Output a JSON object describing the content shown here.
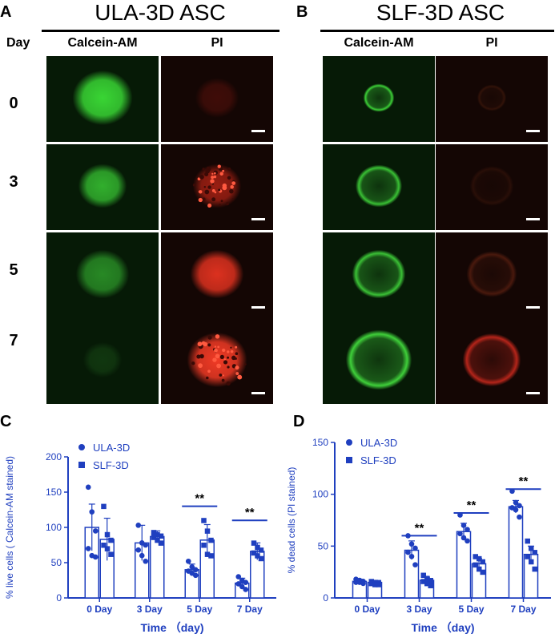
{
  "panels": {
    "A": {
      "letter": "A",
      "title": "ULA-3D ASC",
      "day_header": "Day",
      "col_calcein": "Calcein-AM",
      "col_pi": "PI",
      "days": [
        "0",
        "3",
        "5",
        "7"
      ],
      "tiles": [
        {
          "calcein": {
            "type": "blob",
            "color": "#39d534",
            "intensity": 1.0,
            "size": 0.62
          },
          "pi": {
            "type": "faint",
            "color": "#c02015",
            "intensity": 0.25,
            "size": 0.45
          }
        },
        {
          "calcein": {
            "type": "blob",
            "color": "#39c934",
            "intensity": 0.85,
            "size": 0.5
          },
          "pi": {
            "type": "speckle",
            "color": "#d02818",
            "intensity": 0.7,
            "size": 0.5
          }
        },
        {
          "calcein": {
            "type": "blob",
            "color": "#36b832",
            "intensity": 0.7,
            "size": 0.55
          },
          "pi": {
            "type": "blob",
            "color": "#e63320",
            "intensity": 0.95,
            "size": 0.55
          }
        },
        {
          "calcein": {
            "type": "faint",
            "color": "#2a7a26",
            "intensity": 0.3,
            "size": 0.4
          },
          "pi": {
            "type": "speckle",
            "color": "#f03a25",
            "intensity": 1.0,
            "size": 0.62
          }
        }
      ]
    },
    "B": {
      "letter": "B",
      "title": "SLF-3D ASC",
      "col_calcein": "Calcein-AM",
      "col_pi": "PI",
      "tiles": [
        {
          "calcein": {
            "type": "ring",
            "color": "#3ccf37",
            "intensity": 1.0,
            "size": 0.32
          },
          "pi": {
            "type": "ring-faint",
            "color": "#6a2a12",
            "intensity": 0.35,
            "size": 0.3
          }
        },
        {
          "calcein": {
            "type": "ring",
            "color": "#3cc937",
            "intensity": 0.95,
            "size": 0.48
          },
          "pi": {
            "type": "ring-faint",
            "color": "#5a2210",
            "intensity": 0.3,
            "size": 0.45
          }
        },
        {
          "calcein": {
            "type": "ring",
            "color": "#3dc938",
            "intensity": 0.95,
            "size": 0.55
          },
          "pi": {
            "type": "ring-faint",
            "color": "#8a3018",
            "intensity": 0.45,
            "size": 0.52
          }
        },
        {
          "calcein": {
            "type": "ring",
            "color": "#3fcf3a",
            "intensity": 1.0,
            "size": 0.68
          },
          "pi": {
            "type": "ring",
            "color": "#d02a1e",
            "intensity": 0.85,
            "size": 0.6
          }
        }
      ]
    }
  },
  "colors": {
    "plot_blue": "#1f3fbf"
  },
  "chart_data": [
    {
      "panel": "C",
      "type": "bar",
      "categories": [
        "0 Day",
        "3 Day",
        "5 Day",
        "7 Day"
      ],
      "xlabel": "Time  （day)",
      "ylabel": "% live cells ( Calcein-AM stained)",
      "ylim": [
        0,
        200
      ],
      "yticks": [
        0,
        50,
        100,
        150,
        200
      ],
      "legend_position": "top-left",
      "series": [
        {
          "name": "ULA-3D",
          "marker": "circle",
          "values": [
            100,
            78,
            40,
            21
          ],
          "error": [
            33,
            25,
            8,
            7
          ],
          "points": [
            [
              157,
              122,
              95,
              70,
              60,
              58
            ],
            [
              103,
              78,
              75,
              68,
              60,
              52
            ],
            [
              52,
              44,
              40,
              38,
              35,
              32
            ],
            [
              30,
              25,
              22,
              20,
              16,
              12
            ]
          ]
        },
        {
          "name": "SLF-3D",
          "marker": "square",
          "values": [
            83,
            87,
            82,
            66
          ],
          "error": [
            30,
            8,
            22,
            12
          ],
          "points": [
            [
              130,
              90,
              82,
              75,
              70,
              62
            ],
            [
              93,
              90,
              88,
              86,
              82,
              78
            ],
            [
              110,
              95,
              82,
              75,
              62,
              60
            ],
            [
              78,
              72,
              68,
              64,
              60,
              56
            ]
          ]
        }
      ],
      "significance": [
        {
          "category": "5 Day",
          "label": "**",
          "y": 130
        },
        {
          "category": "7 Day",
          "label": "**",
          "y": 110
        }
      ]
    },
    {
      "panel": "D",
      "type": "bar",
      "categories": [
        "0 Day",
        "3 Day",
        "5 Day",
        "7 Day"
      ],
      "xlabel": "Time  （day)",
      "ylabel": "% dead cells (PI stained)",
      "ylim": [
        0,
        150
      ],
      "yticks": [
        0,
        50,
        100,
        150
      ],
      "legend_position": "top-left",
      "series": [
        {
          "name": "ULA-3D",
          "marker": "circle",
          "values": [
            16,
            46,
            64,
            88
          ],
          "error": [
            2,
            9,
            8,
            6
          ],
          "points": [
            [
              18,
              17,
              16,
              15,
              15,
              14
            ],
            [
              60,
              52,
              48,
              44,
              40,
              32
            ],
            [
              80,
              70,
              66,
              62,
              58,
              55
            ],
            [
              103,
              92,
              89,
              87,
              85,
              78
            ]
          ]
        },
        {
          "name": "SLF-3D",
          "marker": "square",
          "values": [
            15,
            17,
            33,
            42
          ],
          "error": [
            2,
            3,
            5,
            8
          ],
          "points": [
            [
              16,
              15,
              15,
              14,
              13,
              13
            ],
            [
              22,
              19,
              17,
              16,
              14,
              12
            ],
            [
              40,
              38,
              35,
              32,
              28,
              25
            ],
            [
              55,
              48,
              44,
              40,
              35,
              28
            ]
          ]
        }
      ],
      "significance": [
        {
          "category": "3 Day",
          "label": "**",
          "y": 60
        },
        {
          "category": "5 Day",
          "label": "**",
          "y": 82
        },
        {
          "category": "7 Day",
          "label": "**",
          "y": 105
        }
      ]
    }
  ]
}
